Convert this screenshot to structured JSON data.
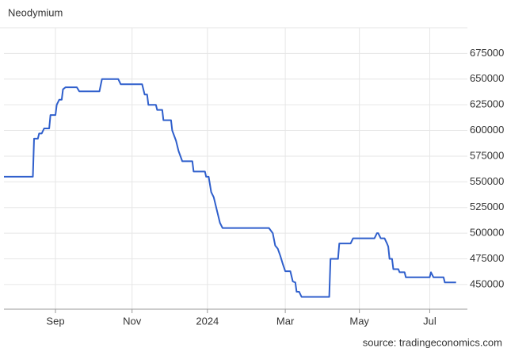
{
  "chart_data": {
    "type": "line",
    "title": "Neodymium",
    "source": "source: tradingeconomics.com",
    "x": [
      0,
      23,
      24,
      27,
      28,
      30,
      32,
      36,
      37,
      41,
      42,
      44,
      46,
      47,
      49,
      58,
      60,
      76,
      78,
      91,
      93,
      110,
      112,
      114,
      115,
      121,
      122,
      126,
      127,
      133,
      134,
      137,
      139,
      142,
      150,
      151,
      160,
      161,
      163,
      165,
      167,
      170,
      172,
      174,
      211,
      214,
      216,
      218,
      220,
      222,
      224,
      228,
      230,
      232,
      233,
      235,
      237,
      259,
      260,
      266,
      267,
      276,
      278,
      295,
      297,
      298,
      300,
      303,
      305,
      306,
      307,
      309,
      310,
      314,
      315,
      319,
      320,
      339,
      340,
      342,
      350,
      351,
      360
    ],
    "series": [
      {
        "name": "Neodymium",
        "color": "#2f5fcc",
        "values": [
          555000,
          555000,
          592000,
          592000,
          597000,
          597000,
          602000,
          602000,
          615000,
          615000,
          625000,
          630000,
          630000,
          640000,
          642000,
          642000,
          638000,
          638000,
          650000,
          650000,
          645000,
          645000,
          635000,
          635000,
          625000,
          625000,
          620000,
          620000,
          610000,
          610000,
          600000,
          590000,
          580000,
          570000,
          570000,
          560000,
          560000,
          555000,
          555000,
          540000,
          535000,
          520000,
          510000,
          505000,
          505000,
          500000,
          488000,
          485000,
          478000,
          470000,
          463000,
          463000,
          453000,
          452000,
          443000,
          443000,
          438000,
          438000,
          475000,
          475000,
          490000,
          490000,
          495000,
          495000,
          500000,
          500000,
          495000,
          495000,
          490000,
          487000,
          475000,
          475000,
          465000,
          465000,
          462000,
          462000,
          457000,
          457000,
          462000,
          457000,
          457000,
          452000,
          452000
        ]
      }
    ],
    "xlim": [
      0,
      369
    ],
    "xticks": [
      {
        "value": 41,
        "label": "Sep"
      },
      {
        "value": 102,
        "label": "Nov"
      },
      {
        "value": 162,
        "label": "2024"
      },
      {
        "value": 224,
        "label": "Mar"
      },
      {
        "value": 283,
        "label": "May"
      },
      {
        "value": 339,
        "label": "Jul"
      }
    ],
    "ylim": [
      426000,
      700000
    ],
    "yticks": [
      450000,
      475000,
      500000,
      525000,
      550000,
      575000,
      600000,
      625000,
      650000,
      675000
    ],
    "grid": true
  }
}
